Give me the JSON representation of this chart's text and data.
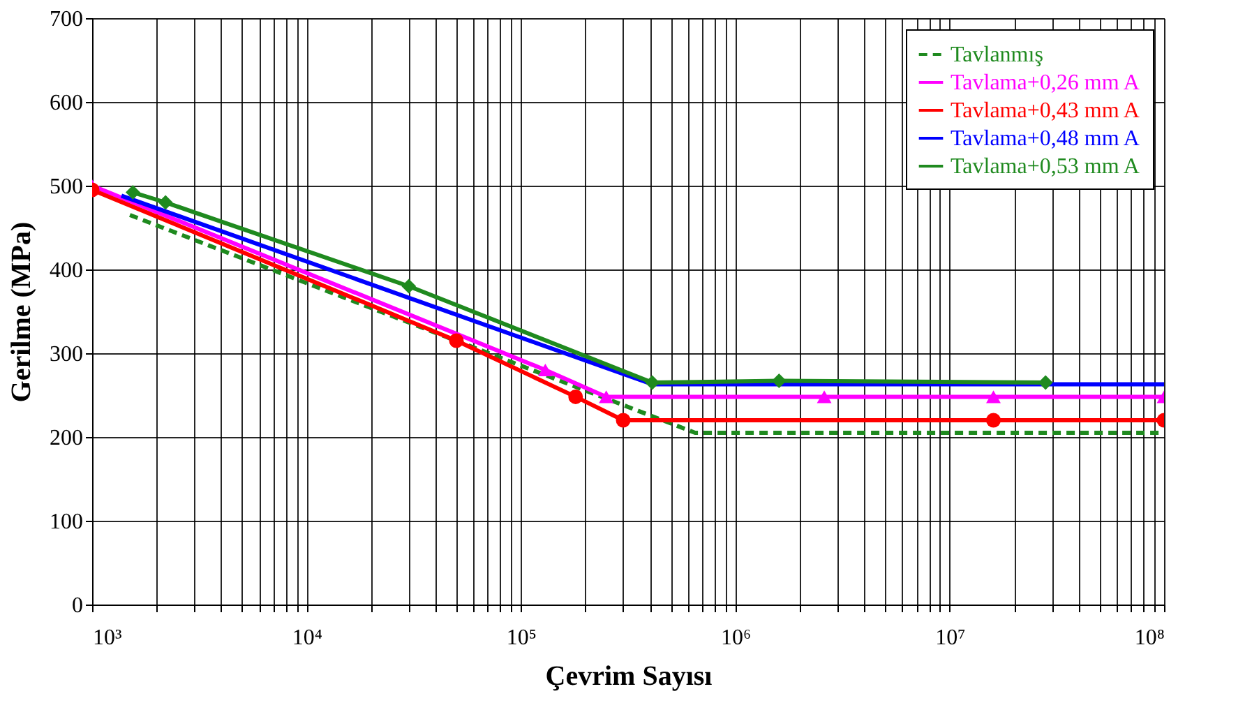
{
  "chart_data": {
    "type": "line",
    "xlabel": "Çevrim Sayısı",
    "ylabel": "Gerilme (MPa)",
    "log": "x",
    "grid": true,
    "legend": "top right",
    "xlim": [
      1000,
      100000000
    ],
    "xticks": [
      {
        "value": 1000,
        "label": "10³"
      },
      {
        "value": 2000,
        "label": null
      },
      {
        "value": 3000,
        "label": null
      },
      {
        "value": 4000,
        "label": null
      },
      {
        "value": 5000,
        "label": null
      },
      {
        "value": 6000,
        "label": null
      },
      {
        "value": 7000,
        "label": null
      },
      {
        "value": 8000,
        "label": null
      },
      {
        "value": 9000,
        "label": null
      },
      {
        "value": 10000,
        "label": "10⁴"
      },
      {
        "value": 20000,
        "label": null
      },
      {
        "value": 30000,
        "label": null
      },
      {
        "value": 40000,
        "label": null
      },
      {
        "value": 50000,
        "label": null
      },
      {
        "value": 60000,
        "label": null
      },
      {
        "value": 70000,
        "label": null
      },
      {
        "value": 80000,
        "label": null
      },
      {
        "value": 90000,
        "label": null
      },
      {
        "value": 100000,
        "label": "10⁵"
      },
      {
        "value": 200000,
        "label": null
      },
      {
        "value": 300000,
        "label": null
      },
      {
        "value": 400000,
        "label": null
      },
      {
        "value": 500000,
        "label": null
      },
      {
        "value": 600000,
        "label": null
      },
      {
        "value": 700000,
        "label": null
      },
      {
        "value": 800000,
        "label": null
      },
      {
        "value": 900000,
        "label": null
      },
      {
        "value": 1000000,
        "label": "10⁶"
      },
      {
        "value": 2000000,
        "label": null
      },
      {
        "value": 3000000,
        "label": null
      },
      {
        "value": 4000000,
        "label": null
      },
      {
        "value": 5000000,
        "label": null
      },
      {
        "value": 6000000,
        "label": null
      },
      {
        "value": 7000000,
        "label": null
      },
      {
        "value": 8000000,
        "label": null
      },
      {
        "value": 9000000,
        "label": null
      },
      {
        "value": 10000000,
        "label": "10⁷"
      },
      {
        "value": 20000000,
        "label": null
      },
      {
        "value": 30000000,
        "label": null
      },
      {
        "value": 40000000,
        "label": null
      },
      {
        "value": 50000000,
        "label": null
      },
      {
        "value": 60000000,
        "label": null
      },
      {
        "value": 70000000,
        "label": null
      },
      {
        "value": 80000000,
        "label": null
      },
      {
        "value": 90000000,
        "label": null
      },
      {
        "value": 100000000,
        "label": "10⁸"
      }
    ],
    "ylim": [
      0,
      700
    ],
    "yticks": [
      0,
      100,
      200,
      300,
      400,
      500,
      600,
      700
    ],
    "series": [
      {
        "name": "Tavlanmış",
        "color": "#1f8a1f",
        "line_style": "dashed",
        "marker": "none",
        "x": [
          1500,
          650000,
          100000000
        ],
        "values": [
          465,
          205,
          205
        ]
      },
      {
        "name": "Tavlama+0,26 mm A",
        "color": "#ff00ff",
        "marker": "triangle",
        "x": [
          1000,
          130000,
          250000,
          2600000,
          16000000,
          100000000
        ],
        "values": [
          500,
          280,
          248,
          248,
          248,
          248
        ]
      },
      {
        "name": "Tavlama+0,43 mm A",
        "color": "#ff0000",
        "marker": "circle",
        "x": [
          1000,
          50000,
          180000,
          300000,
          16000000,
          100000000
        ],
        "values": [
          495,
          315,
          248,
          220,
          220,
          220
        ]
      },
      {
        "name": "Tavlama+0,48 mm A",
        "color": "#0000ff",
        "marker": "none",
        "x": [
          1370,
          410000,
          100000000
        ],
        "values": [
          488,
          263,
          263
        ]
      },
      {
        "name": "Tavlama+0,53 mm A",
        "color": "#1f8a1f",
        "marker": "diamond",
        "x": [
          1550,
          2200,
          30000,
          410000,
          1600000,
          28000000
        ],
        "values": [
          492,
          480,
          380,
          265,
          267,
          265
        ]
      }
    ]
  }
}
